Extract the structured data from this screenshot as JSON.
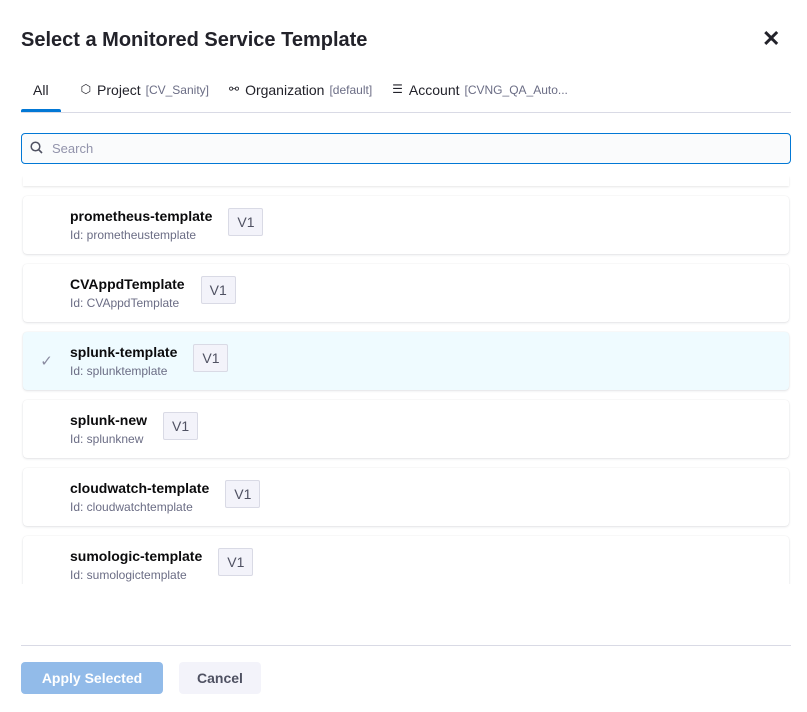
{
  "dialog": {
    "title": "Select a Monitored Service Template",
    "close_icon": "close-icon"
  },
  "tabs": [
    {
      "label": "All",
      "scope": "",
      "icon": ""
    },
    {
      "label": "Project",
      "scope": "[CV_Sanity]",
      "icon": "cube-icon"
    },
    {
      "label": "Organization",
      "scope": "[default]",
      "icon": "hierarchy-icon"
    },
    {
      "label": "Account",
      "scope": "[CVNG_QA_Auto...",
      "icon": "layers-icon"
    }
  ],
  "search": {
    "placeholder": "Search",
    "value": ""
  },
  "templates": [
    {
      "name": "prometheus-template",
      "id": "Id: prometheustemplate",
      "version": "V1",
      "selected": false
    },
    {
      "name": "CVAppdTemplate",
      "id": "Id: CVAppdTemplate",
      "version": "V1",
      "selected": false
    },
    {
      "name": "splunk-template",
      "id": "Id: splunktemplate",
      "version": "V1",
      "selected": true
    },
    {
      "name": "splunk-new",
      "id": "Id: splunknew",
      "version": "V1",
      "selected": false
    },
    {
      "name": "cloudwatch-template",
      "id": "Id: cloudwatchtemplate",
      "version": "V1",
      "selected": false
    },
    {
      "name": "sumologic-template",
      "id": "Id: sumologictemplate",
      "version": "V1",
      "selected": false
    }
  ],
  "footer": {
    "apply_label": "Apply Selected",
    "cancel_label": "Cancel"
  },
  "colors": {
    "accent": "#0278d5",
    "selected_bg": "#effbff",
    "apply_disabled": "#92bbe9"
  }
}
